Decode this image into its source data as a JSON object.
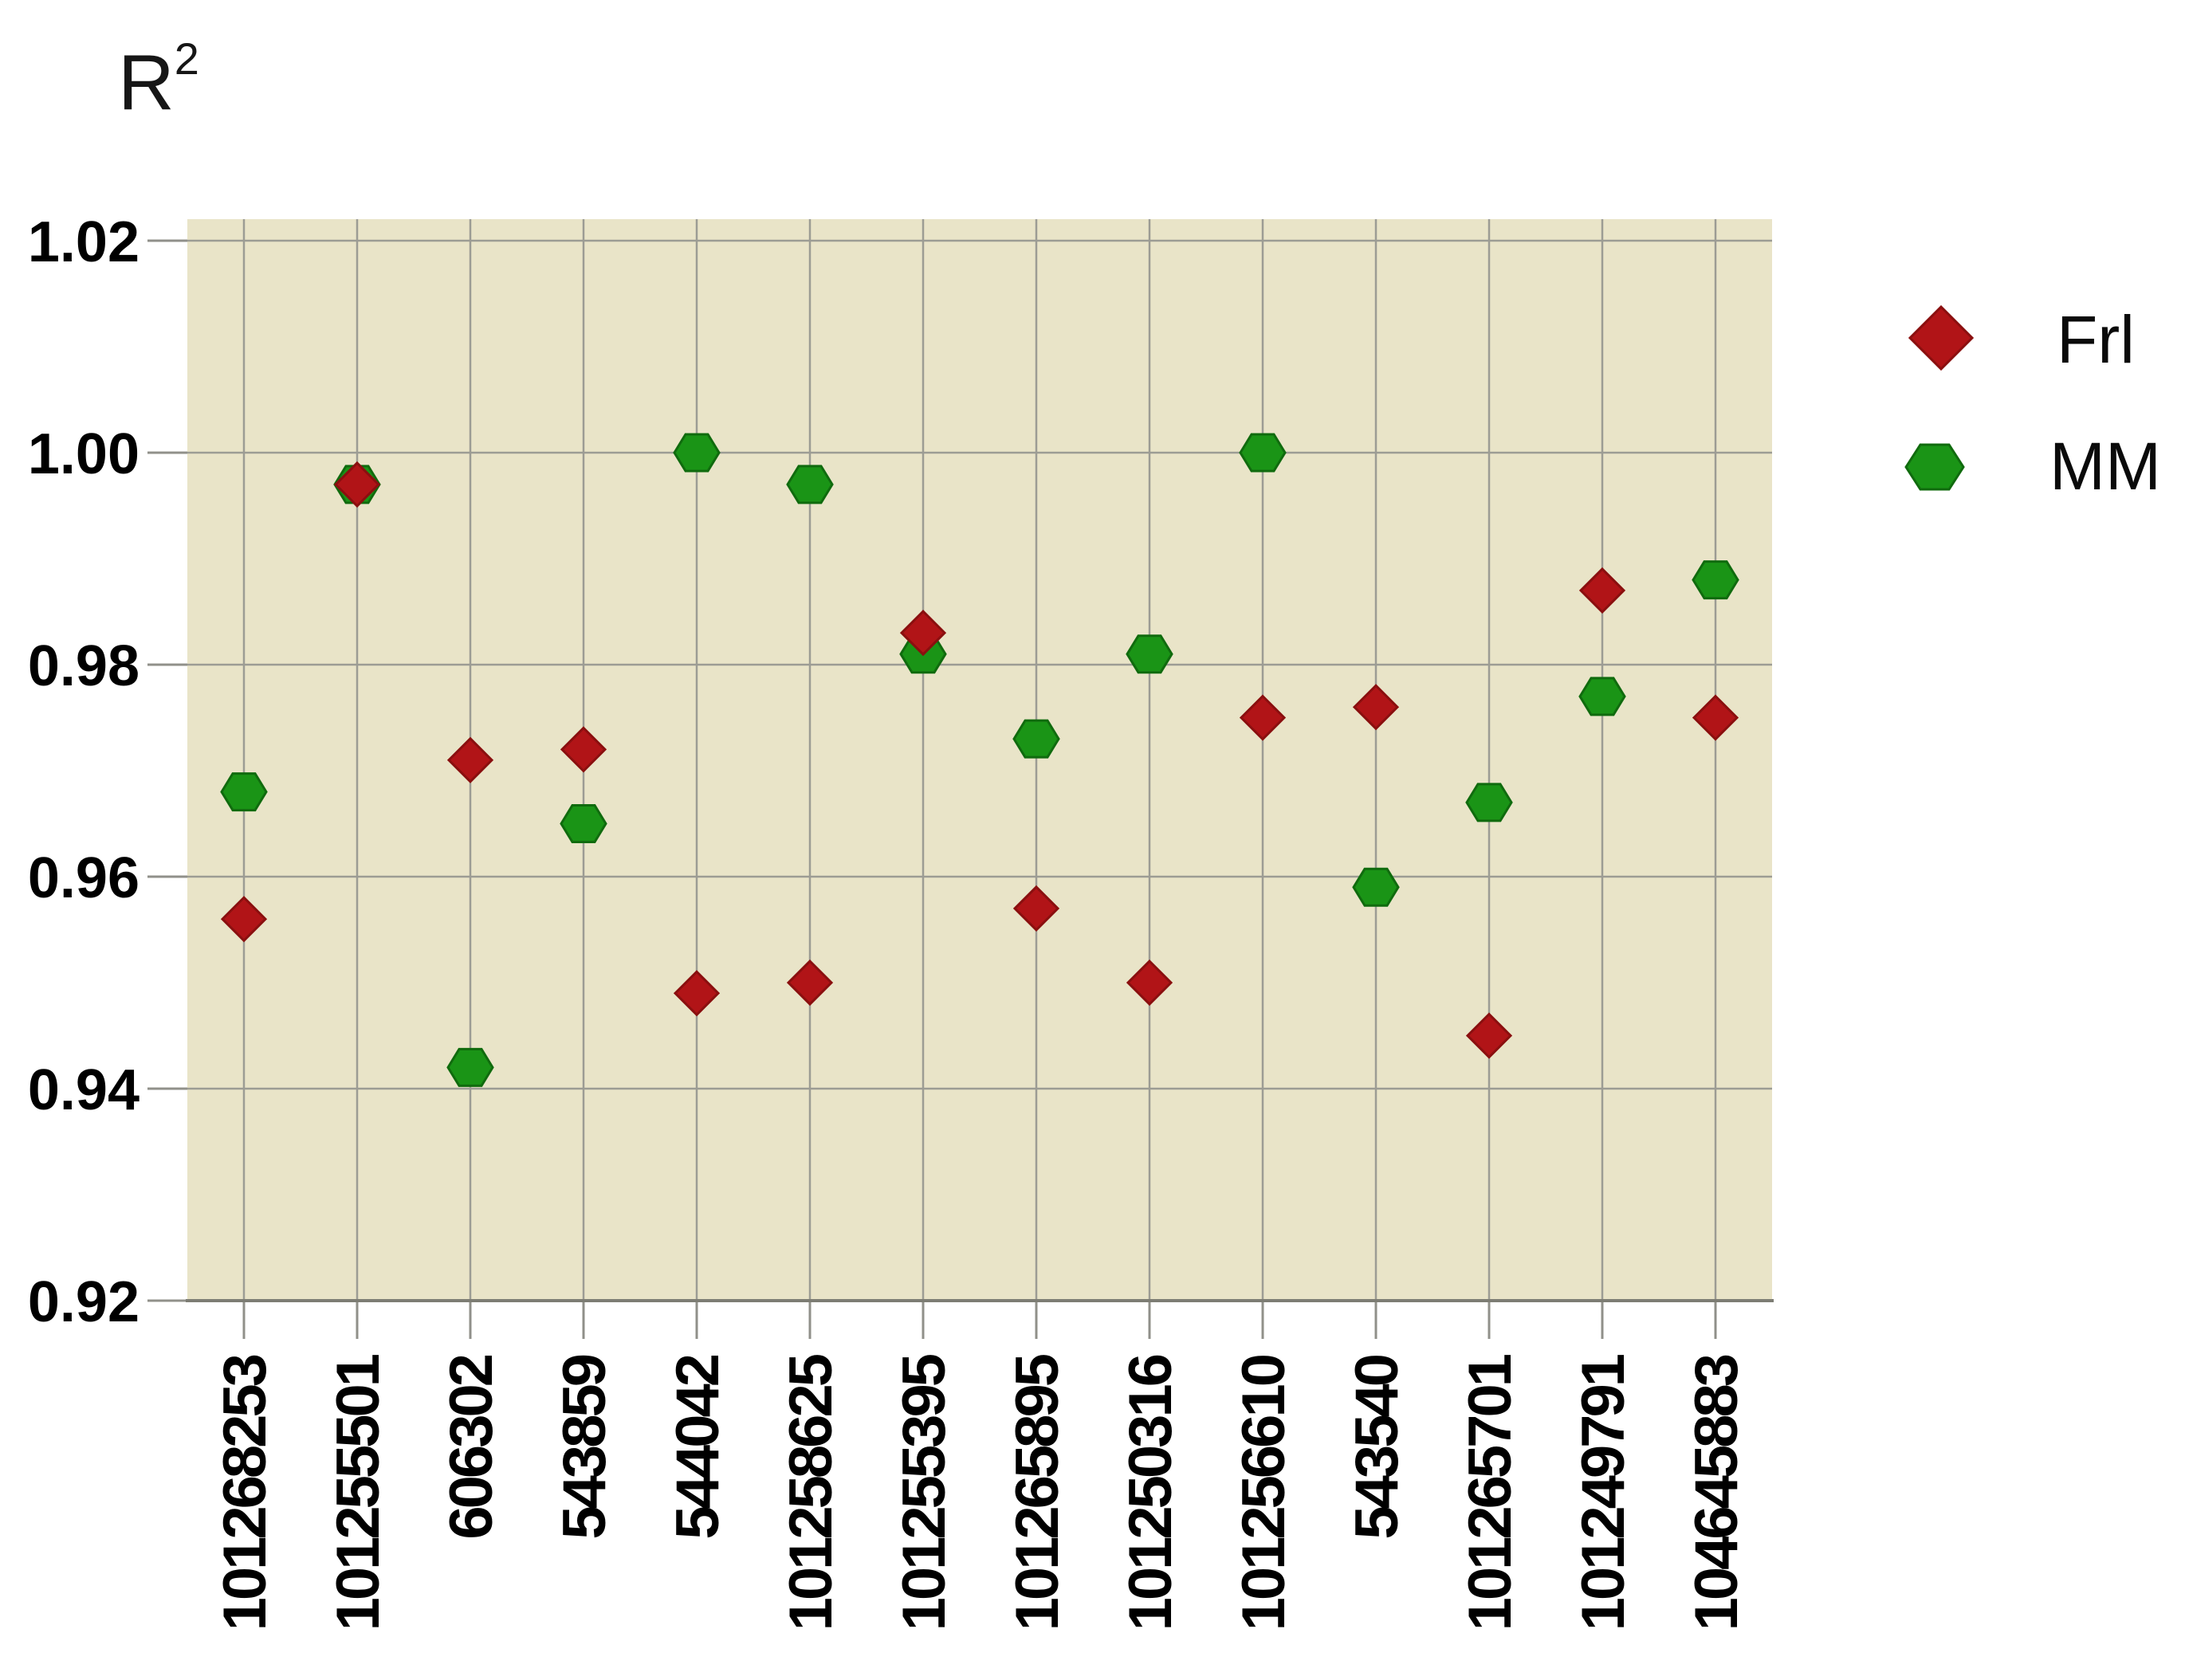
{
  "title": {
    "base": "R",
    "superscript": "2"
  },
  "legend": {
    "items": [
      {
        "label": "Frl",
        "marker": "diamond-icon",
        "color": "#b11417"
      },
      {
        "label": "MM",
        "marker": "hexagon-icon",
        "color": "#1a9416"
      }
    ]
  },
  "colors": {
    "plot_background": "#e9e4c8",
    "gridline": "#9c9c94",
    "axis_line": "#7d7d74",
    "tick": "#90908a",
    "frl_fill": "#b11417",
    "frl_stroke": "#8a0f0f",
    "mm_fill": "#1a9416",
    "mm_stroke": "#106b0e",
    "label_text": "#000000"
  },
  "y_axis": {
    "tick_labels": [
      "1.02",
      "1.00",
      "0.98",
      "0.96",
      "0.94",
      "0.92"
    ]
  },
  "chart_data": {
    "type": "scatter",
    "title": "R²",
    "xlabel": "",
    "ylabel": "R²",
    "ylim": [
      0.92,
      1.02
    ],
    "y_ticks": [
      1.02,
      1.0,
      0.98,
      0.96,
      0.94,
      0.92
    ],
    "grid": true,
    "legend_position": "right",
    "plot_background": "#e9e4c8",
    "categories": [
      "101268253",
      "101255501",
      "606302",
      "543859",
      "544042",
      "101258625",
      "101255395",
      "101265895",
      "101250316",
      "101256610",
      "543540",
      "101265701",
      "101249791",
      "104645883"
    ],
    "series": [
      {
        "name": "Frl",
        "marker": "diamond",
        "color": "#b11417",
        "values": [
          0.956,
          0.997,
          0.971,
          0.972,
          0.949,
          0.95,
          0.983,
          0.957,
          0.95,
          0.975,
          0.976,
          0.945,
          0.987,
          0.975
        ]
      },
      {
        "name": "MM",
        "marker": "hexagon",
        "color": "#1a9416",
        "values": [
          0.968,
          0.997,
          0.942,
          0.965,
          1.0,
          0.997,
          0.981,
          0.973,
          0.981,
          1.0,
          0.959,
          0.967,
          0.977,
          0.988
        ]
      }
    ]
  }
}
